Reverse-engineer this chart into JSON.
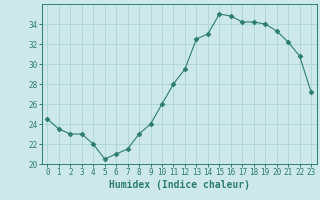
{
  "x": [
    0,
    1,
    2,
    3,
    4,
    5,
    6,
    7,
    8,
    9,
    10,
    11,
    12,
    13,
    14,
    15,
    16,
    17,
    18,
    19,
    20,
    21,
    22,
    23
  ],
  "y": [
    24.5,
    23.5,
    23.0,
    23.0,
    22.0,
    20.5,
    21.0,
    21.5,
    23.0,
    24.0,
    26.0,
    28.0,
    29.5,
    32.5,
    33.0,
    35.0,
    34.8,
    34.2,
    34.2,
    34.0,
    33.3,
    32.2,
    30.8,
    27.2
  ],
  "line_color": "#2d7d6e",
  "marker": "D",
  "marker_size": 2.5,
  "bg_color": "#cde8ea",
  "grid_color": "#b0d8da",
  "xlabel": "Humidex (Indice chaleur)",
  "ylim": [
    20,
    36
  ],
  "xlim": [
    -0.5,
    23.5
  ],
  "yticks": [
    20,
    22,
    24,
    26,
    28,
    30,
    32,
    34
  ],
  "xticks": [
    0,
    1,
    2,
    3,
    4,
    5,
    6,
    7,
    8,
    9,
    10,
    11,
    12,
    13,
    14,
    15,
    16,
    17,
    18,
    19,
    20,
    21,
    22,
    23
  ],
  "tick_fontsize": 5.5,
  "label_fontsize": 7
}
